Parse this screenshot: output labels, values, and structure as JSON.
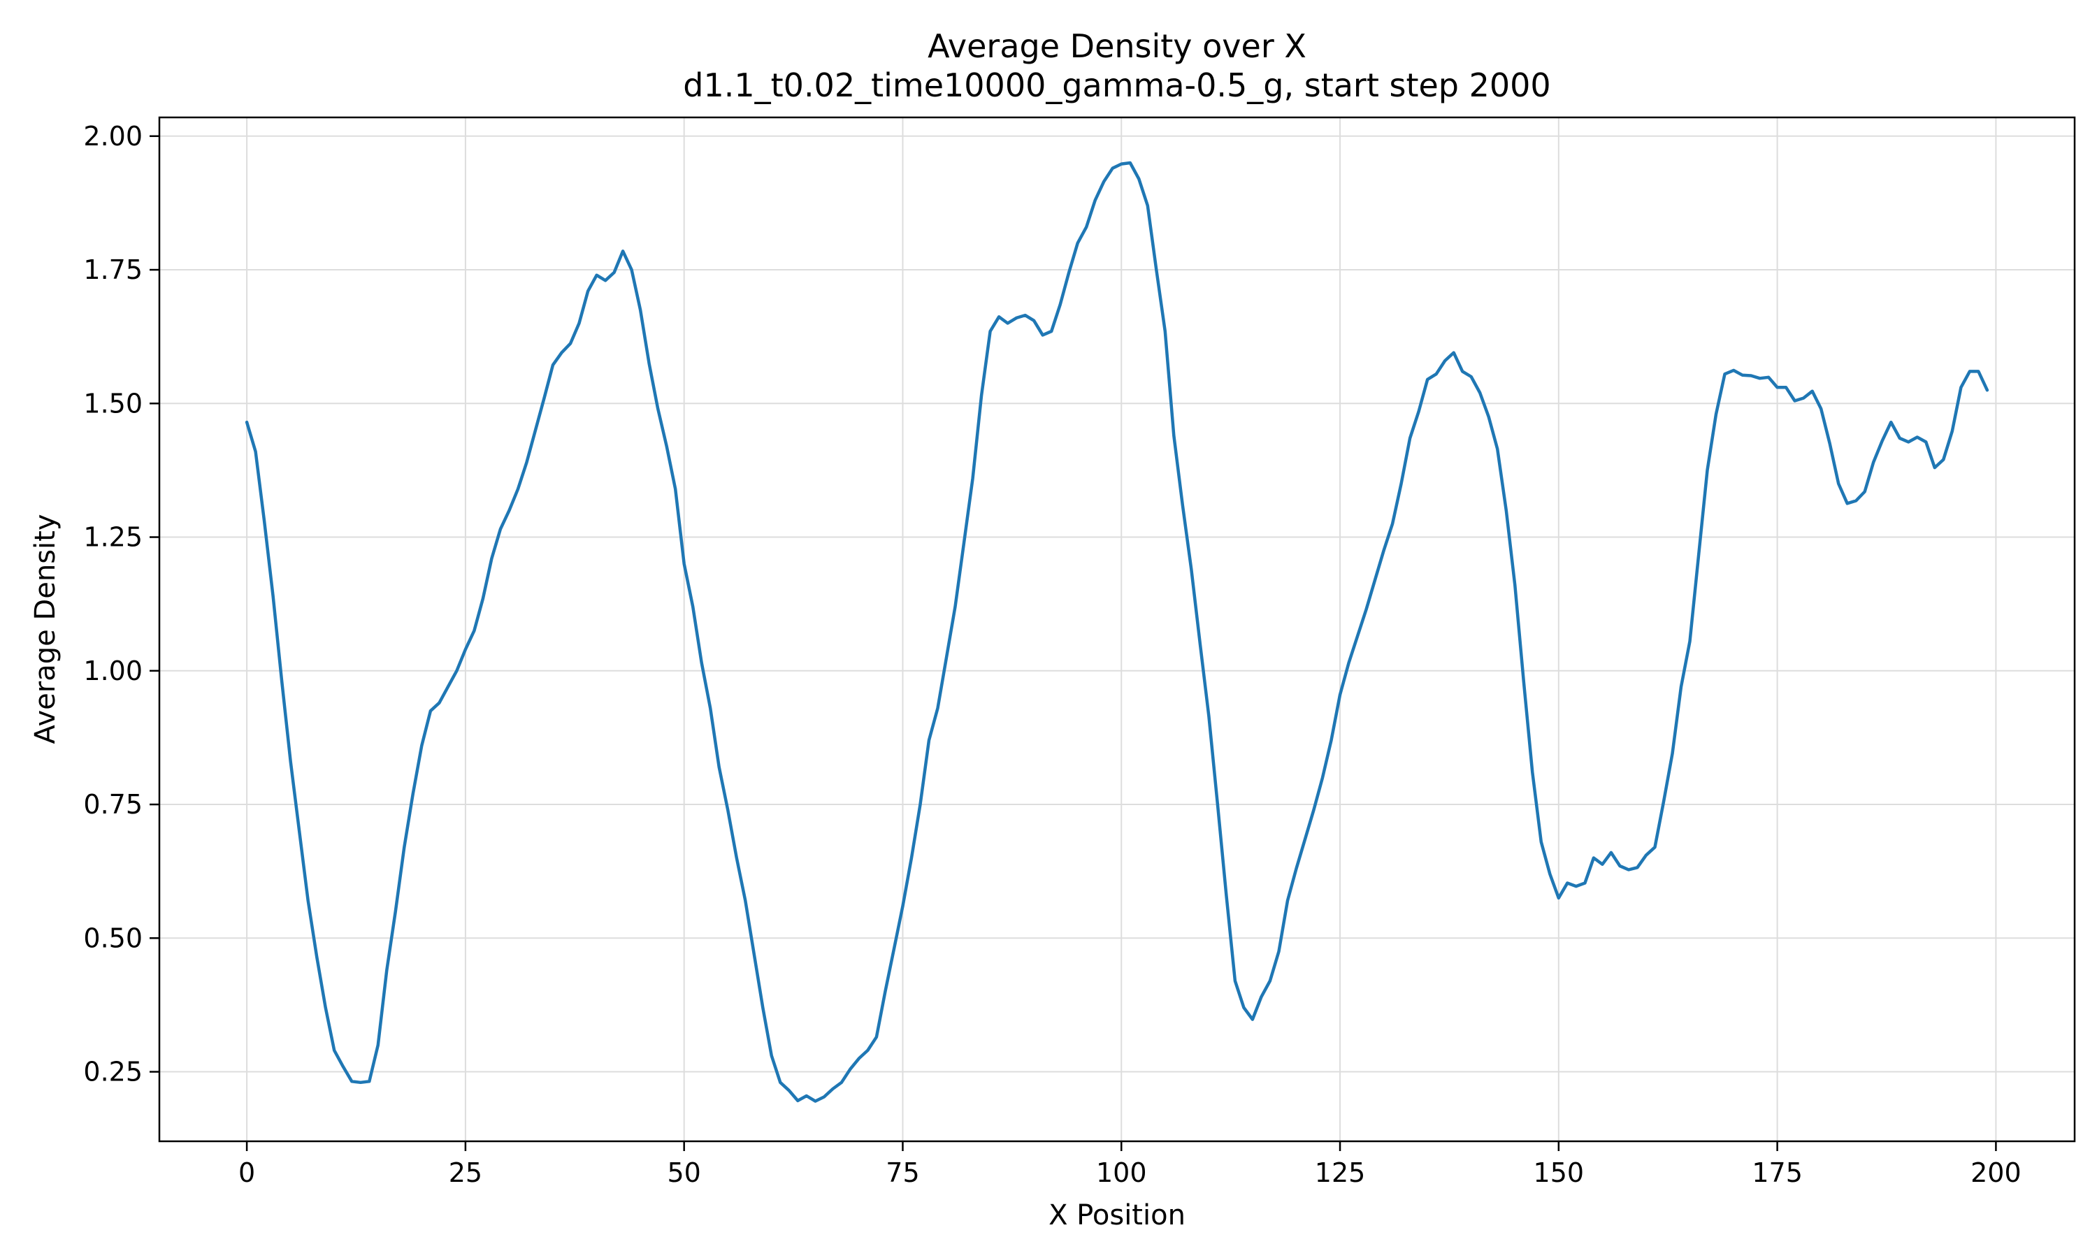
{
  "chart_data": {
    "type": "line",
    "title": "Average Density over X",
    "subtitle": "d1.1_t0.02_time10000_gamma-0.5_g, start step 2000",
    "xlabel": "X Position",
    "ylabel": "Average Density",
    "xlim": [
      -10,
      209
    ],
    "ylim": [
      0.12,
      2.035
    ],
    "grid": true,
    "x_ticks": [
      0,
      25,
      50,
      75,
      100,
      125,
      150,
      175,
      200
    ],
    "x_tick_labels": [
      "0",
      "25",
      "50",
      "75",
      "100",
      "125",
      "150",
      "175",
      "200"
    ],
    "y_ticks": [
      0.25,
      0.5,
      0.75,
      1.0,
      1.25,
      1.5,
      1.75,
      2.0
    ],
    "y_tick_labels": [
      "0.25",
      "0.50",
      "0.75",
      "1.00",
      "1.25",
      "1.50",
      "1.75",
      "2.00"
    ],
    "series": [
      {
        "color": "#1f77b4",
        "x": [
          0,
          1,
          2,
          3,
          4,
          5,
          6,
          7,
          8,
          9,
          10,
          11,
          12,
          13,
          14,
          15,
          16,
          17,
          18,
          19,
          20,
          21,
          22,
          23,
          24,
          25,
          26,
          27,
          28,
          29,
          30,
          31,
          32,
          33,
          34,
          35,
          36,
          37,
          38,
          39,
          40,
          41,
          42,
          43,
          44,
          45,
          46,
          47,
          48,
          49,
          50,
          51,
          52,
          53,
          54,
          55,
          56,
          57,
          58,
          59,
          60,
          61,
          62,
          63,
          64,
          65,
          66,
          67,
          68,
          69,
          70,
          71,
          72,
          73,
          74,
          75,
          76,
          77,
          78,
          79,
          80,
          81,
          82,
          83,
          84,
          85,
          86,
          87,
          88,
          89,
          90,
          91,
          92,
          93,
          94,
          95,
          96,
          97,
          98,
          99,
          100,
          101,
          102,
          103,
          104,
          105,
          106,
          107,
          108,
          109,
          110,
          111,
          112,
          113,
          114,
          115,
          116,
          117,
          118,
          119,
          120,
          121,
          122,
          123,
          124,
          125,
          126,
          127,
          128,
          129,
          130,
          131,
          132,
          133,
          134,
          135,
          136,
          137,
          138,
          139,
          140,
          141,
          142,
          143,
          144,
          145,
          146,
          147,
          148,
          149,
          150,
          151,
          152,
          153,
          154,
          155,
          156,
          157,
          158,
          159,
          160,
          161,
          162,
          163,
          164,
          165,
          166,
          167,
          168,
          169,
          170,
          171,
          172,
          173,
          174,
          175,
          176,
          177,
          178,
          179,
          180,
          181,
          182,
          183,
          184,
          185,
          186,
          187,
          188,
          189,
          190,
          191,
          192,
          193,
          194,
          195,
          196,
          197,
          198,
          199
        ],
        "values": [
          1.465,
          1.41,
          1.28,
          1.14,
          0.98,
          0.83,
          0.7,
          0.57,
          0.465,
          0.37,
          0.29,
          0.26,
          0.232,
          0.23,
          0.232,
          0.3,
          0.44,
          0.55,
          0.67,
          0.77,
          0.86,
          0.925,
          0.94,
          0.97,
          1.0,
          1.04,
          1.075,
          1.135,
          1.21,
          1.265,
          1.3,
          1.34,
          1.39,
          1.45,
          1.51,
          1.572,
          1.595,
          1.612,
          1.65,
          1.71,
          1.74,
          1.73,
          1.745,
          1.785,
          1.75,
          1.675,
          1.575,
          1.49,
          1.42,
          1.34,
          1.2,
          1.12,
          1.015,
          0.93,
          0.82,
          0.74,
          0.65,
          0.57,
          0.47,
          0.37,
          0.28,
          0.23,
          0.215,
          0.196,
          0.205,
          0.195,
          0.203,
          0.218,
          0.23,
          0.255,
          0.275,
          0.29,
          0.315,
          0.4,
          0.48,
          0.56,
          0.65,
          0.75,
          0.87,
          0.93,
          1.025,
          1.12,
          1.24,
          1.36,
          1.515,
          1.635,
          1.662,
          1.65,
          1.66,
          1.665,
          1.655,
          1.628,
          1.635,
          1.685,
          1.745,
          1.8,
          1.83,
          1.88,
          1.915,
          1.94,
          1.948,
          1.95,
          1.92,
          1.87,
          1.75,
          1.635,
          1.44,
          1.31,
          1.19,
          1.05,
          0.915,
          0.75,
          0.58,
          0.42,
          0.37,
          0.348,
          0.39,
          0.42,
          0.475,
          0.57,
          0.63,
          0.685,
          0.74,
          0.8,
          0.87,
          0.955,
          1.015,
          1.065,
          1.115,
          1.17,
          1.225,
          1.275,
          1.35,
          1.435,
          1.485,
          1.545,
          1.555,
          1.58,
          1.595,
          1.56,
          1.55,
          1.52,
          1.475,
          1.415,
          1.3,
          1.16,
          0.98,
          0.81,
          0.68,
          0.62,
          0.575,
          0.603,
          0.597,
          0.603,
          0.65,
          0.638,
          0.66,
          0.635,
          0.628,
          0.632,
          0.655,
          0.67,
          0.755,
          0.845,
          0.97,
          1.055,
          1.215,
          1.375,
          1.48,
          1.555,
          1.562,
          1.553,
          1.552,
          1.547,
          1.549,
          1.53,
          1.53,
          1.505,
          1.51,
          1.523,
          1.49,
          1.425,
          1.35,
          1.313,
          1.318,
          1.335,
          1.39,
          1.43,
          1.465,
          1.435,
          1.428,
          1.437,
          1.428,
          1.38,
          1.395,
          1.448,
          1.53,
          1.56,
          1.56,
          1.525
        ]
      }
    ]
  }
}
